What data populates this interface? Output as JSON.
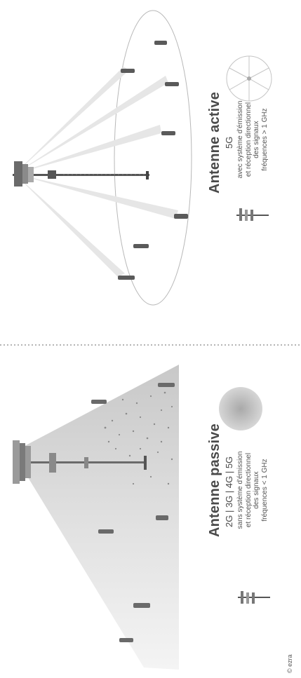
{
  "passive": {
    "title": "Antenne passive",
    "generations": "2G | 3G | 4G | 5G",
    "desc_lines": [
      "sans système d'émission",
      "et réception directionnel",
      "des signaux",
      "fréquences < 1 GHz"
    ]
  },
  "active": {
    "title": "Antenne active",
    "generations": "5G",
    "desc_lines": [
      "avec système d'émission",
      "et réception directionnel",
      "des signaux",
      "fréquences > 1 GHz"
    ]
  },
  "credit": "© ezra"
}
